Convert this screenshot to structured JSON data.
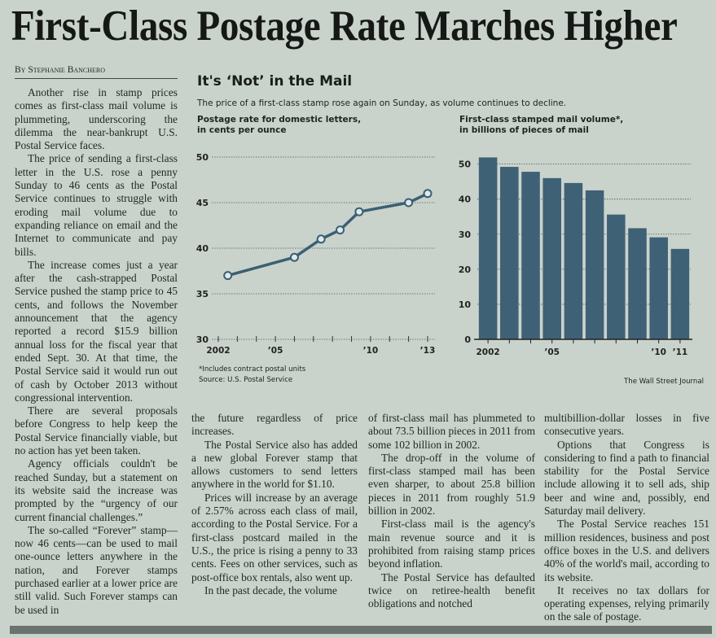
{
  "article": {
    "headline": "First-Class Postage Rate Marches Higher",
    "byline": "By Stephanie Banchero",
    "columns": [
      [
        "Another rise in stamp prices comes as first-class mail volume is plummeting, underscoring the dilemma the near-bankrupt U.S. Postal Service faces.",
        "The price of sending a first-class letter in the U.S. rose a penny Sunday to 46 cents as the Postal Service continues to struggle with eroding mail volume due to expanding reliance on email and the Internet to communicate and pay bills.",
        "The increase comes just a year after the cash-strapped Postal Service pushed the stamp price to 45 cents, and follows the November announcement that the agency reported a record $15.9 billion annual loss for the fiscal year that ended Sept. 30. At that time, the Postal Service said it would run out of cash by October 2013 without congressional intervention.",
        "There are several proposals before Congress to help keep the Postal Service financially viable, but no action has yet been taken.",
        "Agency officials couldn't be reached Sunday, but a statement on its website said the increase was prompted by the “urgency of our current financial challenges.”",
        "The so-called “Forever” stamp—now 46 cents—can be used to mail one-ounce letters anywhere in the nation, and Forever stamps purchased earlier at a lower price are still valid. Such Forever stamps can be used in"
      ],
      [
        "the future regardless of price increases.",
        "The Postal Service also has added a new global Forever stamp that allows customers to send letters anywhere in the world for $1.10.",
        "Prices will increase by an average of 2.57% across each class of mail, according to the Postal Service. For a first-class postcard mailed in the U.S., the price is rising a penny to 33 cents. Fees on other services, such as post-office box rentals, also went up.",
        "In the past decade, the volume"
      ],
      [
        "of first-class mail has plummeted to about 73.5 billion pieces in 2011 from some 102 billion in 2002.",
        "The drop-off in the volume of first-class stamped mail has been even sharper, to about 25.8 billion pieces in 2011 from roughly 51.9 billion in 2002.",
        "First-class mail is the agency's main revenue source and it is prohibited from raising stamp prices beyond inflation.",
        "The Postal Service has defaulted twice on retiree-health benefit obligations and notched"
      ],
      [
        "multibillion-dollar losses in five consecutive years.",
        "Options that Congress is considering to find a path to financial stability for the Postal Service include allowing it to sell ads, ship beer and wine and, possibly, end Saturday mail delivery.",
        "The Postal Service reaches 151 million residences, business and post office boxes in the U.S. and delivers 40% of the world's mail, according to its website.",
        "It receives no tax dollars for operating expenses, relying primarily on the sale of postage."
      ]
    ]
  },
  "graphic": {
    "title": "It's ‘Not’ in the Mail",
    "subtitle": "The price of a first-class stamp rose again on Sunday, as volume continues to decline.",
    "footnote": "*Includes contract postal units",
    "source": "Source: U.S. Postal Service",
    "credit": "The Wall Street Journal",
    "colors": {
      "line": "#3b5f72",
      "marker_fill": "#dfe8ea",
      "bar": "#3f6175",
      "grid": "#556"
    }
  },
  "chart_data": [
    {
      "type": "line",
      "title": "Postage rate for domestic letters, in cents per ounce",
      "title_lines": [
        "Postage rate for domestic letters,",
        "in cents per ounce"
      ],
      "xlabel": "",
      "ylabel": "cents per ounce",
      "x": [
        2002.5,
        2006.0,
        2007.4,
        2008.4,
        2009.4,
        2012.0,
        2013.0
      ],
      "values": [
        37,
        39,
        41,
        42,
        44,
        45,
        46
      ],
      "xlim": [
        2002,
        2013.3
      ],
      "ylim": [
        30,
        50
      ],
      "yticks": [
        30,
        35,
        40,
        45,
        50
      ],
      "xticks": [
        2002,
        2003,
        2004,
        2005,
        2006,
        2007,
        2008,
        2009,
        2010,
        2011,
        2012,
        2013
      ],
      "xtick_labels": {
        "2002": "2002",
        "2005": "’05",
        "2010": "’10",
        "2013": "’13"
      },
      "grid": true
    },
    {
      "type": "bar",
      "title": "First-class stamped mail volume*, in billions of pieces of mail",
      "title_lines": [
        "First-class stamped mail volume*,",
        "in billions of pieces of mail"
      ],
      "categories": [
        "2002",
        "2003",
        "2004",
        "2005",
        "2006",
        "2007",
        "2008",
        "2009",
        "2010",
        "2011"
      ],
      "values": [
        51.9,
        49.2,
        47.8,
        46.0,
        44.6,
        42.5,
        35.6,
        31.7,
        29.1,
        25.8
      ],
      "xtick_labels": {
        "2002": "2002",
        "2005": "’05",
        "2010": "’10",
        "2011": "’11"
      },
      "ylim": [
        0,
        52
      ],
      "yticks": [
        0,
        10,
        20,
        30,
        40,
        50
      ],
      "grid": true
    }
  ]
}
